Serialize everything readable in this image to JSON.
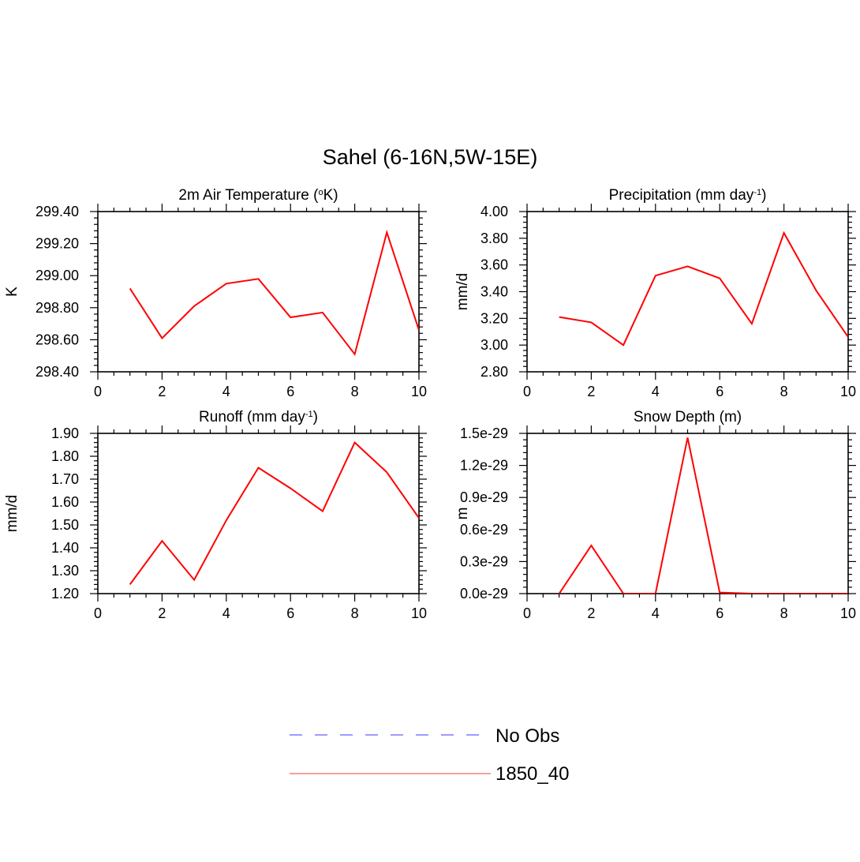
{
  "title": "Sahel (6-16N,5W-15E)",
  "legend": {
    "placement": "bottom-center",
    "entries": [
      {
        "label": "No Obs",
        "color": "#7b7bff",
        "style": "dashed"
      },
      {
        "label": "1850_40",
        "color": "#f08080",
        "style": "solid"
      }
    ]
  },
  "chart_data": [
    {
      "type": "line",
      "title": "2m Air Temperature (",
      "title_sup": "o",
      "title_after": "K)",
      "ylabel": "K",
      "xlim": [
        0,
        10
      ],
      "ylim": [
        298.4,
        299.4
      ],
      "x_ticks": [
        "0",
        "2",
        "4",
        "6",
        "8",
        "10"
      ],
      "y_ticks": [
        "298.40",
        "298.60",
        "298.80",
        "299.00",
        "299.20",
        "299.40"
      ],
      "series": [
        {
          "name": "1850_40",
          "color": "#ff0000",
          "x": [
            1,
            2,
            3,
            4,
            5,
            6,
            7,
            8,
            9,
            10
          ],
          "y": [
            298.92,
            298.61,
            298.81,
            298.95,
            298.98,
            298.74,
            298.77,
            298.51,
            299.27,
            298.66
          ]
        }
      ]
    },
    {
      "type": "line",
      "title": "Precipitation (mm day",
      "title_sup": "-1",
      "title_after": ")",
      "ylabel": "mm/d",
      "xlim": [
        0,
        10
      ],
      "ylim": [
        2.8,
        4.0
      ],
      "x_ticks": [
        "0",
        "2",
        "4",
        "6",
        "8",
        "10"
      ],
      "y_ticks": [
        "2.80",
        "3.00",
        "3.20",
        "3.40",
        "3.60",
        "3.80",
        "4.00"
      ],
      "series": [
        {
          "name": "1850_40",
          "color": "#ff0000",
          "x": [
            1,
            2,
            3,
            4,
            5,
            6,
            7,
            8,
            9,
            10
          ],
          "y": [
            3.21,
            3.17,
            3.0,
            3.52,
            3.59,
            3.5,
            3.16,
            3.84,
            3.41,
            3.06
          ]
        }
      ]
    },
    {
      "type": "line",
      "title": "Runoff (mm day",
      "title_sup": "-1",
      "title_after": ")",
      "ylabel": "mm/d",
      "xlim": [
        0,
        10
      ],
      "ylim": [
        1.2,
        1.9
      ],
      "x_ticks": [
        "0",
        "2",
        "4",
        "6",
        "8",
        "10"
      ],
      "y_ticks": [
        "1.20",
        "1.30",
        "1.40",
        "1.50",
        "1.60",
        "1.70",
        "1.80",
        "1.90"
      ],
      "series": [
        {
          "name": "1850_40",
          "color": "#ff0000",
          "x": [
            1,
            2,
            3,
            4,
            5,
            6,
            7,
            8,
            9,
            10
          ],
          "y": [
            1.24,
            1.43,
            1.26,
            1.52,
            1.75,
            1.66,
            1.56,
            1.86,
            1.73,
            1.53
          ]
        }
      ]
    },
    {
      "type": "line",
      "title": "Snow Depth (m)",
      "title_sup": "",
      "title_after": "",
      "ylabel": "m",
      "xlim": [
        0,
        10
      ],
      "ylim": [
        0.0,
        1.5e-29
      ],
      "x_ticks": [
        "0",
        "2",
        "4",
        "6",
        "8",
        "10"
      ],
      "y_ticks": [
        "0.0e-29",
        "0.3e-29",
        "0.6e-29",
        "0.9e-29",
        "1.2e-29",
        "1.5e-29"
      ],
      "series": [
        {
          "name": "1850_40",
          "color": "#ff0000",
          "x": [
            1,
            2,
            3,
            4,
            5,
            6,
            7,
            8,
            9,
            10
          ],
          "y": [
            0.0,
            4.5e-30,
            0.0,
            0.0,
            1.46e-29,
            1e-31,
            0.0,
            0.0,
            0.0,
            0.0
          ]
        }
      ]
    }
  ]
}
